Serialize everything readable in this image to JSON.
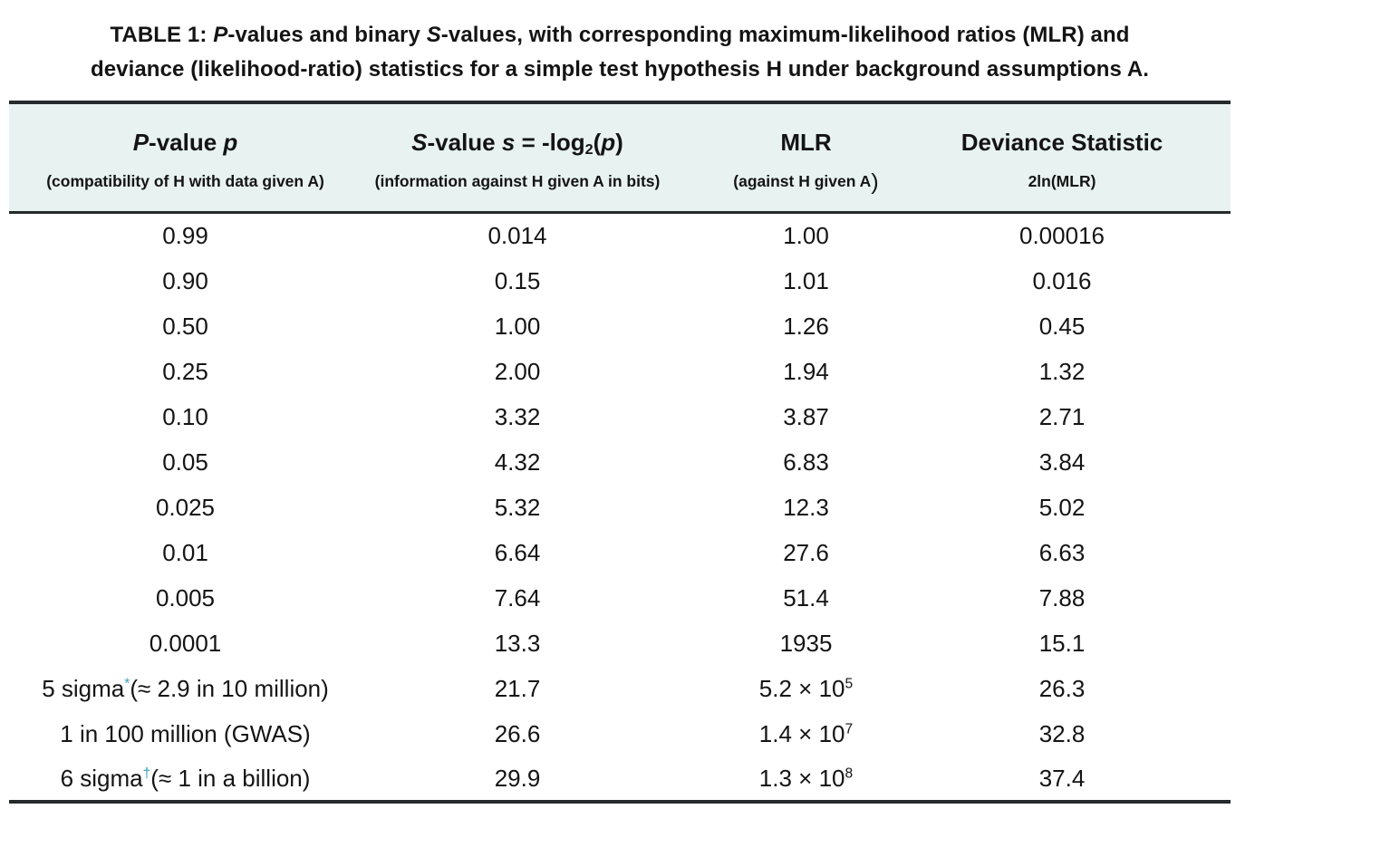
{
  "colors": {
    "header_bg": "#e8f3f1",
    "accent": "#3a9fb8",
    "rule": "#262a2a",
    "text": "#141414"
  },
  "caption": {
    "segments": [
      {
        "t": "TABLE 1",
        "name": "caption-label"
      },
      {
        "t": ": "
      },
      {
        "t": "P",
        "i": true
      },
      {
        "t": "-values and binary "
      },
      {
        "t": "S",
        "i": true
      },
      {
        "t": "-values, with corresponding maximum-likelihood ratios (MLR) and"
      },
      {
        "br": true
      },
      {
        "t": "deviance (likelihood-ratio) statistics for a simple test hypothesis H under background assumptions A."
      }
    ]
  },
  "table": {
    "columns": [
      {
        "id": "p-value",
        "title": [
          {
            "t": "P",
            "i": true
          },
          {
            "t": "-value "
          },
          {
            "t": "p",
            "i": true
          }
        ],
        "subtitle": [
          {
            "t": "(compatibility of H with data given A)"
          }
        ]
      },
      {
        "id": "s-value",
        "title": [
          {
            "t": "S",
            "i": true
          },
          {
            "t": "-value "
          },
          {
            "t": "s",
            "i": true
          },
          {
            "t": " = -log"
          },
          {
            "t": "2",
            "sub": true
          },
          {
            "t": "("
          },
          {
            "t": "p",
            "i": true
          },
          {
            "t": ")"
          }
        ],
        "subtitle": [
          {
            "t": "(information against H given A in bits)"
          }
        ]
      },
      {
        "id": "mlr",
        "title": [
          {
            "t": "MLR"
          }
        ],
        "subtitle": [
          {
            "t": "(against H given A"
          },
          {
            "t": ")",
            "big": true
          }
        ]
      },
      {
        "id": "deviance",
        "title": [
          {
            "t": "Deviance Statistic"
          }
        ],
        "subtitle": [
          {
            "t": "2ln(MLR)"
          }
        ]
      }
    ],
    "rows": [
      [
        "0.99",
        "0.014",
        "1.00",
        "0.00016"
      ],
      [
        "0.90",
        "0.15",
        "1.01",
        "0.016"
      ],
      [
        "0.50",
        "1.00",
        "1.26",
        "0.45"
      ],
      [
        "0.25",
        "2.00",
        "1.94",
        "1.32"
      ],
      [
        "0.10",
        "3.32",
        "3.87",
        "2.71"
      ],
      [
        "0.05",
        "4.32",
        "6.83",
        "3.84"
      ],
      [
        "0.025",
        "5.32",
        "12.3",
        "5.02"
      ],
      [
        "0.01",
        "6.64",
        "27.6",
        "6.63"
      ],
      [
        "0.005",
        "7.64",
        "51.4",
        "7.88"
      ],
      [
        "0.0001",
        "13.3",
        "1935",
        "15.1"
      ],
      [
        [
          {
            "t": "5 sigma"
          },
          {
            "t": "*",
            "sup": true,
            "accent": true,
            "name": "asterisk-footnote-marker"
          },
          {
            "t": "(≈ 2.9 in 10 million)"
          }
        ],
        "21.7",
        [
          {
            "t": "5.2 × 10"
          },
          {
            "t": "5",
            "sup": true
          }
        ],
        "26.3"
      ],
      [
        "1 in 100 million (GWAS)",
        "26.6",
        [
          {
            "t": "1.4 × 10"
          },
          {
            "t": "7",
            "sup": true
          }
        ],
        "32.8"
      ],
      [
        [
          {
            "t": "6 sigma"
          },
          {
            "t": "†",
            "sup": true,
            "accent": true,
            "name": "dagger-footnote-marker"
          },
          {
            "t": "(≈ 1 in a billion)"
          }
        ],
        "29.9",
        [
          {
            "t": "1.3 × 10"
          },
          {
            "t": "8",
            "sup": true
          }
        ],
        "37.4"
      ]
    ]
  }
}
